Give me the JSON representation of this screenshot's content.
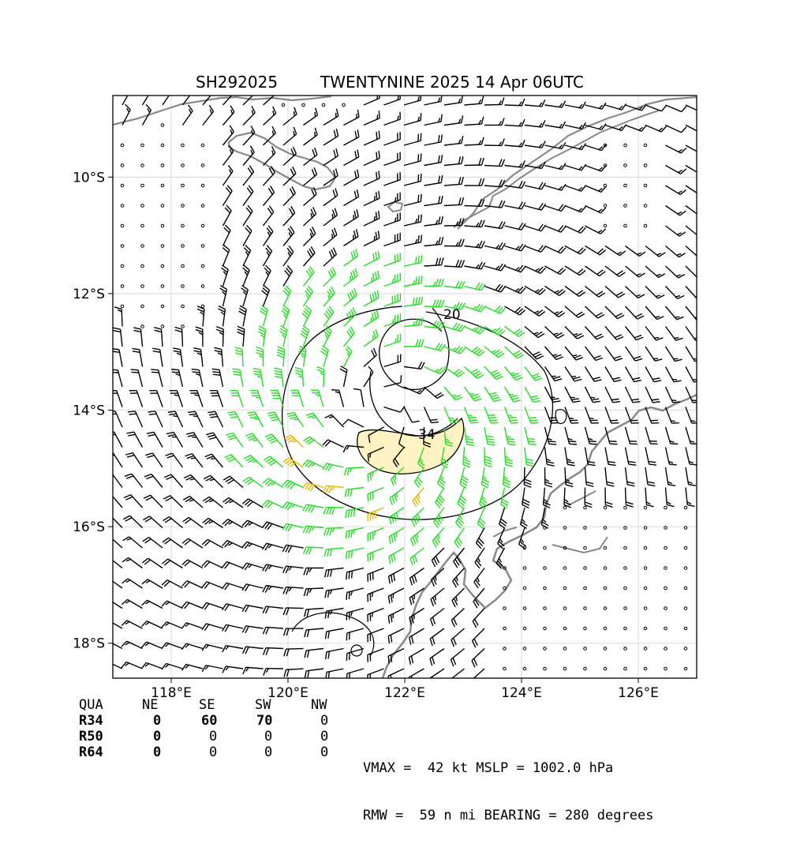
{
  "header": {
    "storm_id": "SH292025",
    "storm_title": "TWENTYNINE 2025 14 Apr 06UTC"
  },
  "map": {
    "extent": {
      "lon_min": 117.0,
      "lon_max": 127.0,
      "lat_min": -18.6,
      "lat_max": -8.6
    },
    "lon_ticks": [
      {
        "value": 118,
        "label": "118°E"
      },
      {
        "value": 120,
        "label": "120°E"
      },
      {
        "value": 122,
        "label": "122°E"
      },
      {
        "value": 124,
        "label": "124°E"
      },
      {
        "value": 126,
        "label": "126°E"
      }
    ],
    "lat_ticks": [
      {
        "value": -10,
        "label": "10°S"
      },
      {
        "value": -12,
        "label": "12°S"
      },
      {
        "value": -14,
        "label": "14°S"
      },
      {
        "value": -16,
        "label": "16°S"
      },
      {
        "value": -18,
        "label": "18°S"
      }
    ],
    "grid": true,
    "colors": {
      "coast": "#888888",
      "barb_default": "#000000",
      "barb_gale": "#22dd22",
      "barb_storm": "#e6b800",
      "contour": "#000000",
      "storm_fill": "#fff3c4",
      "grid": "#d0d0d0"
    },
    "center": {
      "lon": 121.6,
      "lat": -14.0
    },
    "contours": [
      {
        "level": 20,
        "label": "20",
        "type": "wind-speed-kt"
      },
      {
        "level": 34,
        "label": "34",
        "type": "wind-speed-kt"
      }
    ]
  },
  "wind_radii": {
    "columns": [
      "QUA",
      "NE",
      "SE",
      "SW",
      "NW"
    ],
    "rows": [
      {
        "label": "R34",
        "values": [
          "0",
          "60",
          "70",
          "0"
        ]
      },
      {
        "label": "R50",
        "values": [
          "0",
          "0",
          "0",
          "0"
        ]
      },
      {
        "label": "R64",
        "values": [
          "0",
          "0",
          "0",
          "0"
        ]
      }
    ]
  },
  "summary": {
    "line1": "VMAX =  42 kt MSLP = 1002.0 hPa",
    "line2": "RMW =  59 n mi BEARING = 280 degrees"
  },
  "storm": {
    "vmax_kt": 42,
    "mslp_hpa": 1002.0,
    "rmw_nmi": 59,
    "bearing_deg": 280
  }
}
